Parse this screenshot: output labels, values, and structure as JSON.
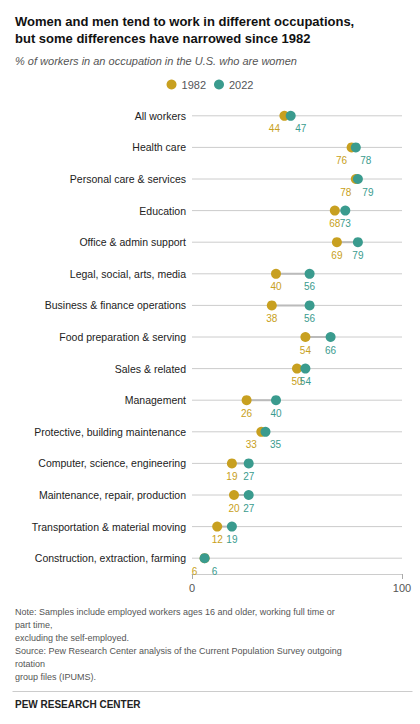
{
  "chart_data": {
    "type": "dumbbell",
    "title": "Women and men tend to work in different occupations,\nbut some differences have narrowed since 1982",
    "subtitle": "% of workers in an occupation in the U.S. who are women",
    "annotations": [
      "Note: Samples include employed workers ages 16 and older, working full time or part time,",
      "excluding the self-employed.",
      "Source: Pew Research Center analysis of the Current Population Survey outgoing rotation",
      "group files (IPUMS)."
    ],
    "footer": "PEW RESEARCH CENTER",
    "categories": [
      "All workers",
      "Health care",
      "Personal care & services",
      "Education",
      "Office & admin support",
      "Legal, social, arts, media",
      "Business & finance operations",
      "Food preparation & serving",
      "Sales & related",
      "Management",
      "Protective, building maintenance",
      "Computer, science, engineering",
      "Maintenance, repair, production",
      "Transportation & material moving",
      "Construction, extraction, farming"
    ],
    "series": [
      {
        "name": "1982",
        "color": "#c8a020",
        "values": [
          44,
          76,
          78,
          68,
          69,
          40,
          38,
          54,
          50,
          26,
          33,
          19,
          20,
          12,
          6
        ]
      },
      {
        "name": "2022",
        "color": "#3a9b8e",
        "values": [
          47,
          78,
          79,
          73,
          79,
          56,
          56,
          66,
          54,
          40,
          35,
          27,
          27,
          19,
          6
        ]
      }
    ],
    "xlim": [
      0,
      100
    ],
    "xticks": [
      0,
      100
    ],
    "orientation": "horizontal",
    "data_labels": true,
    "legend": "top",
    "grid": false
  }
}
